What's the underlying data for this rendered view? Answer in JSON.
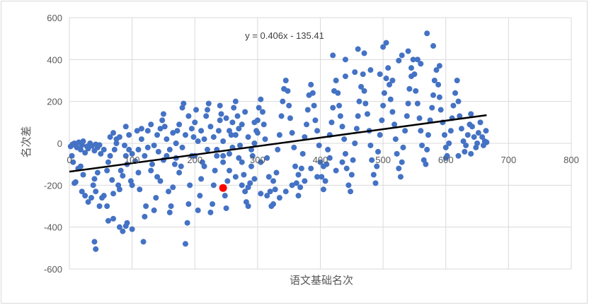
{
  "chart_data": {
    "type": "scatter",
    "title": "",
    "xlabel": "语文基础名次",
    "ylabel": "名次差",
    "xlim": [
      0,
      800
    ],
    "ylim": [
      -600,
      600
    ],
    "x_ticks": [
      "0",
      "100",
      "200",
      "300",
      "400",
      "500",
      "600",
      "700",
      "800"
    ],
    "y_ticks": [
      "600",
      "400",
      "200",
      "0",
      "-200",
      "-400",
      "-600"
    ],
    "grid": true,
    "legend": "none",
    "trendline": {
      "label": "y = 0.406x - 135.41",
      "slope": 0.406,
      "intercept": -135.41,
      "x_range": [
        0,
        665
      ],
      "color": "#000000"
    },
    "series_color": "#4472c4",
    "highlight_color": "#ff0000",
    "highlight_points": [
      [
        245,
        -213
      ]
    ],
    "points": [
      [
        2,
        -15
      ],
      [
        5,
        -5
      ],
      [
        8,
        0
      ],
      [
        10,
        -10
      ],
      [
        12,
        -20
      ],
      [
        15,
        5
      ],
      [
        18,
        -30
      ],
      [
        20,
        -8
      ],
      [
        22,
        10
      ],
      [
        25,
        -45
      ],
      [
        28,
        -15
      ],
      [
        30,
        -25
      ],
      [
        33,
        0
      ],
      [
        36,
        -12
      ],
      [
        40,
        -35
      ],
      [
        42,
        -5
      ],
      [
        45,
        -20
      ],
      [
        48,
        -8
      ],
      [
        50,
        -50
      ],
      [
        55,
        -30
      ],
      [
        4,
        -60
      ],
      [
        6,
        -90
      ],
      [
        8,
        -190
      ],
      [
        10,
        -185
      ],
      [
        14,
        -120
      ],
      [
        18,
        -110
      ],
      [
        20,
        -230
      ],
      [
        22,
        -150
      ],
      [
        25,
        -250
      ],
      [
        30,
        -280
      ],
      [
        35,
        -260
      ],
      [
        38,
        -200
      ],
      [
        40,
        -170
      ],
      [
        42,
        -230
      ],
      [
        45,
        -140
      ],
      [
        40,
        -470
      ],
      [
        42,
        -505
      ],
      [
        48,
        -300
      ],
      [
        52,
        -260
      ],
      [
        55,
        -250
      ],
      [
        60,
        -130
      ],
      [
        62,
        -90
      ],
      [
        65,
        -60
      ],
      [
        68,
        -175
      ],
      [
        70,
        -240
      ],
      [
        72,
        -30
      ],
      [
        75,
        20
      ],
      [
        78,
        -200
      ],
      [
        80,
        -220
      ],
      [
        82,
        -130
      ],
      [
        85,
        -155
      ],
      [
        88,
        -10
      ],
      [
        90,
        -60
      ],
      [
        92,
        -100
      ],
      [
        95,
        -30
      ],
      [
        98,
        -180
      ],
      [
        100,
        -200
      ],
      [
        62,
        -370
      ],
      [
        70,
        -360
      ],
      [
        80,
        -400
      ],
      [
        85,
        -420
      ],
      [
        90,
        -395
      ],
      [
        92,
        -380
      ],
      [
        100,
        -410
      ],
      [
        60,
        -300
      ],
      [
        65,
        30
      ],
      [
        70,
        50
      ],
      [
        75,
        0
      ],
      [
        80,
        30
      ],
      [
        90,
        80
      ],
      [
        95,
        40
      ],
      [
        100,
        -50
      ],
      [
        105,
        -85
      ],
      [
        108,
        60
      ],
      [
        110,
        -140
      ],
      [
        112,
        -220
      ],
      [
        115,
        70
      ],
      [
        118,
        -470
      ],
      [
        120,
        -350
      ],
      [
        122,
        -300
      ],
      [
        125,
        -20
      ],
      [
        130,
        90
      ],
      [
        132,
        -100
      ],
      [
        135,
        -320
      ],
      [
        138,
        -260
      ],
      [
        140,
        -160
      ],
      [
        142,
        -40
      ],
      [
        145,
        -180
      ],
      [
        148,
        110
      ],
      [
        150,
        140
      ],
      [
        152,
        80
      ],
      [
        155,
        -60
      ],
      [
        158,
        -230
      ],
      [
        160,
        -330
      ],
      [
        162,
        -300
      ],
      [
        165,
        -210
      ],
      [
        168,
        -100
      ],
      [
        170,
        0
      ],
      [
        172,
        60
      ],
      [
        175,
        -140
      ],
      [
        178,
        -110
      ],
      [
        180,
        170
      ],
      [
        182,
        190
      ],
      [
        185,
        -480
      ],
      [
        188,
        -380
      ],
      [
        190,
        -290
      ],
      [
        192,
        -200
      ],
      [
        195,
        -60
      ],
      [
        198,
        30
      ],
      [
        200,
        100
      ],
      [
        202,
        160
      ],
      [
        205,
        -320
      ],
      [
        208,
        -250
      ],
      [
        210,
        -170
      ],
      [
        212,
        -90
      ],
      [
        215,
        20
      ],
      [
        218,
        130
      ],
      [
        220,
        160
      ],
      [
        222,
        190
      ],
      [
        225,
        -330
      ],
      [
        228,
        -290
      ],
      [
        230,
        -200
      ],
      [
        232,
        -130
      ],
      [
        235,
        -30
      ],
      [
        238,
        60
      ],
      [
        240,
        110
      ],
      [
        242,
        140
      ],
      [
        245,
        -90
      ],
      [
        248,
        -250
      ],
      [
        250,
        -310
      ],
      [
        252,
        -180
      ],
      [
        255,
        -50
      ],
      [
        258,
        40
      ],
      [
        260,
        100
      ],
      [
        262,
        170
      ],
      [
        265,
        200
      ],
      [
        268,
        130
      ],
      [
        270,
        70
      ],
      [
        272,
        -10
      ],
      [
        275,
        -90
      ],
      [
        278,
        -150
      ],
      [
        280,
        -230
      ],
      [
        282,
        -280
      ],
      [
        285,
        -300
      ],
      [
        288,
        -190
      ],
      [
        290,
        -110
      ],
      [
        292,
        -60
      ],
      [
        295,
        0
      ],
      [
        298,
        60
      ],
      [
        300,
        110
      ],
      [
        302,
        170
      ],
      [
        305,
        210
      ],
      [
        308,
        150
      ],
      [
        310,
        90
      ],
      [
        312,
        20
      ],
      [
        315,
        -70
      ],
      [
        318,
        -160
      ],
      [
        320,
        -230
      ],
      [
        322,
        -300
      ],
      [
        325,
        -290
      ],
      [
        328,
        -220
      ],
      [
        330,
        -140
      ],
      [
        332,
        -30
      ],
      [
        335,
        40
      ],
      [
        338,
        130
      ],
      [
        340,
        200
      ],
      [
        342,
        260
      ],
      [
        345,
        300
      ],
      [
        348,
        250
      ],
      [
        350,
        180
      ],
      [
        352,
        120
      ],
      [
        355,
        50
      ],
      [
        358,
        -20
      ],
      [
        360,
        -110
      ],
      [
        362,
        -190
      ],
      [
        365,
        -250
      ],
      [
        368,
        -210
      ],
      [
        370,
        -120
      ],
      [
        372,
        -50
      ],
      [
        375,
        30
      ],
      [
        378,
        90
      ],
      [
        380,
        160
      ],
      [
        382,
        230
      ],
      [
        385,
        280
      ],
      [
        388,
        240
      ],
      [
        390,
        180
      ],
      [
        392,
        110
      ],
      [
        395,
        60
      ],
      [
        398,
        -10
      ],
      [
        400,
        -90
      ],
      [
        402,
        -160
      ],
      [
        405,
        -220
      ],
      [
        408,
        -180
      ],
      [
        410,
        -100
      ],
      [
        412,
        -30
      ],
      [
        415,
        40
      ],
      [
        418,
        100
      ],
      [
        420,
        170
      ],
      [
        422,
        250
      ],
      [
        425,
        300
      ],
      [
        428,
        240
      ],
      [
        430,
        180
      ],
      [
        432,
        130
      ],
      [
        435,
        80
      ],
      [
        438,
        20
      ],
      [
        440,
        -50
      ],
      [
        442,
        -120
      ],
      [
        445,
        -200
      ],
      [
        448,
        -230
      ],
      [
        450,
        -150
      ],
      [
        452,
        -80
      ],
      [
        455,
        0
      ],
      [
        458,
        70
      ],
      [
        460,
        130
      ],
      [
        462,
        200
      ],
      [
        465,
        270
      ],
      [
        468,
        330
      ],
      [
        470,
        250
      ],
      [
        472,
        190
      ],
      [
        475,
        140
      ],
      [
        478,
        60
      ],
      [
        480,
        -10
      ],
      [
        482,
        -80
      ],
      [
        485,
        -150
      ],
      [
        488,
        -190
      ],
      [
        490,
        -110
      ],
      [
        492,
        -40
      ],
      [
        495,
        40
      ],
      [
        498,
        110
      ],
      [
        500,
        180
      ],
      [
        502,
        240
      ],
      [
        505,
        310
      ],
      [
        508,
        360
      ],
      [
        510,
        280
      ],
      [
        512,
        210
      ],
      [
        515,
        150
      ],
      [
        518,
        90
      ],
      [
        520,
        20
      ],
      [
        522,
        -50
      ],
      [
        525,
        -120
      ],
      [
        528,
        -160
      ],
      [
        530,
        -90
      ],
      [
        532,
        -20
      ],
      [
        535,
        60
      ],
      [
        538,
        130
      ],
      [
        540,
        190
      ],
      [
        542,
        260
      ],
      [
        545,
        320
      ],
      [
        548,
        400
      ],
      [
        550,
        330
      ],
      [
        552,
        250
      ],
      [
        555,
        190
      ],
      [
        558,
        120
      ],
      [
        560,
        60
      ],
      [
        562,
        -10
      ],
      [
        565,
        -80
      ],
      [
        568,
        -100
      ],
      [
        570,
        -30
      ],
      [
        572,
        40
      ],
      [
        575,
        110
      ],
      [
        578,
        170
      ],
      [
        580,
        230
      ],
      [
        582,
        300
      ],
      [
        585,
        350
      ],
      [
        588,
        280
      ],
      [
        590,
        220
      ],
      [
        592,
        160
      ],
      [
        595,
        100
      ],
      [
        598,
        40
      ],
      [
        600,
        -20
      ],
      [
        602,
        -60
      ],
      [
        605,
        0
      ],
      [
        608,
        60
      ],
      [
        610,
        120
      ],
      [
        612,
        180
      ],
      [
        615,
        240
      ],
      [
        618,
        300
      ],
      [
        620,
        200
      ],
      [
        622,
        130
      ],
      [
        625,
        70
      ],
      [
        628,
        10
      ],
      [
        630,
        -40
      ],
      [
        632,
        -10
      ],
      [
        635,
        40
      ],
      [
        638,
        90
      ],
      [
        640,
        140
      ],
      [
        642,
        80
      ],
      [
        645,
        30
      ],
      [
        648,
        -20
      ],
      [
        650,
        0
      ],
      [
        652,
        50
      ],
      [
        655,
        100
      ],
      [
        658,
        30
      ],
      [
        660,
        -10
      ],
      [
        662,
        10
      ],
      [
        665,
        5
      ],
      [
        664,
        60
      ],
      [
        640,
        -50
      ],
      [
        620,
        -60
      ],
      [
        600,
        -70
      ],
      [
        420,
        420
      ],
      [
        440,
        400
      ],
      [
        460,
        450
      ],
      [
        470,
        430
      ],
      [
        500,
        460
      ],
      [
        505,
        480
      ],
      [
        530,
        420
      ],
      [
        540,
        440
      ],
      [
        555,
        400
      ],
      [
        560,
        380
      ],
      [
        570,
        525
      ],
      [
        580,
        465
      ],
      [
        590,
        370
      ],
      [
        545,
        360
      ],
      [
        525,
        395
      ],
      [
        455,
        340
      ],
      [
        440,
        320
      ],
      [
        480,
        350
      ],
      [
        495,
        330
      ],
      [
        515,
        300
      ],
      [
        245,
        -60
      ],
      [
        255,
        -130
      ],
      [
        265,
        -160
      ],
      [
        275,
        -200
      ],
      [
        285,
        -210
      ],
      [
        295,
        -170
      ],
      [
        305,
        -240
      ],
      [
        315,
        -250
      ],
      [
        325,
        -180
      ],
      [
        335,
        -260
      ],
      [
        345,
        -230
      ],
      [
        355,
        -200
      ],
      [
        365,
        -150
      ],
      [
        375,
        -180
      ],
      [
        385,
        -120
      ],
      [
        395,
        -160
      ],
      [
        405,
        -110
      ],
      [
        415,
        -70
      ],
      [
        425,
        -130
      ],
      [
        435,
        -90
      ],
      [
        110,
        -30
      ],
      [
        115,
        20
      ],
      [
        120,
        -60
      ],
      [
        125,
        60
      ],
      [
        130,
        -130
      ],
      [
        135,
        -10
      ],
      [
        140,
        40
      ],
      [
        145,
        70
      ],
      [
        150,
        -80
      ],
      [
        155,
        20
      ],
      [
        160,
        -30
      ],
      [
        165,
        50
      ],
      [
        170,
        -70
      ],
      [
        175,
        90
      ],
      [
        180,
        -20
      ],
      [
        185,
        40
      ],
      [
        190,
        130
      ],
      [
        195,
        70
      ],
      [
        200,
        -60
      ],
      [
        205,
        10
      ],
      [
        210,
        60
      ],
      [
        215,
        -110
      ],
      [
        220,
        -30
      ],
      [
        225,
        80
      ],
      [
        230,
        30
      ],
      [
        235,
        -60
      ],
      [
        240,
        180
      ],
      [
        245,
        10
      ],
      [
        250,
        120
      ],
      [
        255,
        60
      ],
      [
        260,
        -20
      ],
      [
        265,
        40
      ],
      [
        270,
        -70
      ],
      [
        275,
        90
      ],
      [
        280,
        150
      ],
      [
        285,
        30
      ],
      [
        290,
        -30
      ],
      [
        295,
        100
      ],
      [
        300,
        50
      ],
      [
        305,
        -90
      ]
    ]
  }
}
